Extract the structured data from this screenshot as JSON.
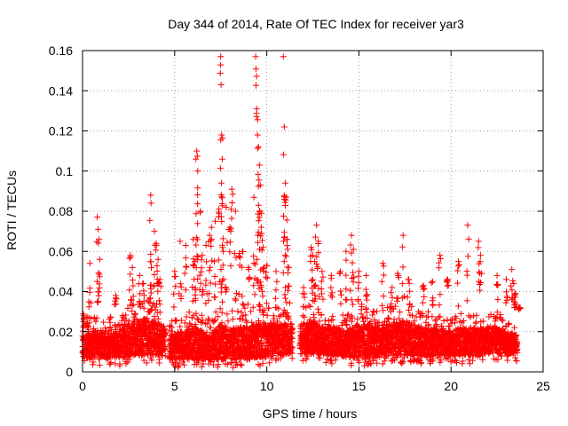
{
  "chart_data": {
    "type": "scatter",
    "title": "Day 344 of 2014, Rate Of TEC Index for receiver yar3",
    "xlabel": "GPS time / hours",
    "ylabel": "ROTI / TECUs",
    "xlim": [
      0,
      25
    ],
    "ylim": [
      0,
      0.16
    ],
    "xticks": [
      0,
      5,
      10,
      15,
      20,
      25
    ],
    "xtick_labels": [
      "0",
      "5",
      "10",
      "15",
      "20",
      "25"
    ],
    "yticks": [
      0,
      0.02,
      0.04,
      0.06,
      0.08,
      0.1,
      0.12,
      0.14,
      0.16
    ],
    "ytick_labels": [
      "0",
      "0.02",
      "0.04",
      "0.06",
      "0.08",
      "0.1",
      "0.12",
      "0.14",
      "0.16"
    ],
    "grid": true,
    "marker": "+",
    "series": [
      {
        "name": "yar3",
        "color": "#ff0000",
        "data_gaps_hours": [
          [
            4.5,
            4.7
          ],
          [
            11.4,
            11.8
          ]
        ],
        "points": [
          [
            0.05,
            0.025
          ],
          [
            0.3,
            0.018
          ],
          [
            0.4,
            0.054
          ],
          [
            0.8,
            0.077
          ],
          [
            0.85,
            0.071
          ],
          [
            0.9,
            0.066
          ],
          [
            1.5,
            0.022
          ],
          [
            1.8,
            0.038
          ],
          [
            2.3,
            0.02
          ],
          [
            2.6,
            0.058
          ],
          [
            2.7,
            0.052
          ],
          [
            3.1,
            0.048
          ],
          [
            3.3,
            0.044
          ],
          [
            3.6,
            0.03
          ],
          [
            3.7,
            0.088
          ],
          [
            3.72,
            0.084
          ],
          [
            3.9,
            0.07
          ],
          [
            4.0,
            0.064
          ],
          [
            4.1,
            0.056
          ],
          [
            4.2,
            0.046
          ],
          [
            5.0,
            0.05
          ],
          [
            5.3,
            0.065
          ],
          [
            5.6,
            0.063
          ],
          [
            6.0,
            0.066
          ],
          [
            6.1,
            0.055
          ],
          [
            6.15,
            0.106
          ],
          [
            6.2,
            0.11
          ],
          [
            6.25,
            0.1
          ],
          [
            6.4,
            0.08
          ],
          [
            6.5,
            0.058
          ],
          [
            6.7,
            0.063
          ],
          [
            6.9,
            0.068
          ],
          [
            7.0,
            0.072
          ],
          [
            7.2,
            0.075
          ],
          [
            7.4,
            0.081
          ],
          [
            7.5,
            0.157
          ],
          [
            7.52,
            0.143
          ],
          [
            7.55,
            0.118
          ],
          [
            7.58,
            0.106
          ],
          [
            7.6,
            0.062
          ],
          [
            7.8,
            0.082
          ],
          [
            8.0,
            0.072
          ],
          [
            8.1,
            0.091
          ],
          [
            8.3,
            0.08
          ],
          [
            8.5,
            0.059
          ],
          [
            8.7,
            0.06
          ],
          [
            9.0,
            0.052
          ],
          [
            9.3,
            0.087
          ],
          [
            9.4,
            0.157
          ],
          [
            9.45,
            0.131
          ],
          [
            9.5,
            0.118
          ],
          [
            9.55,
            0.112
          ],
          [
            9.6,
            0.103
          ],
          [
            9.65,
            0.093
          ],
          [
            9.7,
            0.079
          ],
          [
            9.8,
            0.062
          ],
          [
            10.0,
            0.053
          ],
          [
            10.5,
            0.05
          ],
          [
            10.9,
            0.157
          ],
          [
            10.95,
            0.122
          ],
          [
            11.0,
            0.094
          ],
          [
            11.05,
            0.087
          ],
          [
            11.1,
            0.066
          ],
          [
            11.2,
            0.052
          ],
          [
            12.0,
            0.042
          ],
          [
            12.4,
            0.062
          ],
          [
            12.5,
            0.058
          ],
          [
            12.6,
            0.055
          ],
          [
            12.7,
            0.073
          ],
          [
            12.8,
            0.065
          ],
          [
            13.0,
            0.05
          ],
          [
            13.5,
            0.048
          ],
          [
            14.0,
            0.05
          ],
          [
            14.3,
            0.06
          ],
          [
            14.6,
            0.068
          ],
          [
            14.7,
            0.061
          ],
          [
            15.0,
            0.05
          ],
          [
            15.4,
            0.048
          ],
          [
            16.3,
            0.054
          ],
          [
            16.8,
            0.042
          ],
          [
            17.1,
            0.049
          ],
          [
            17.4,
            0.068
          ],
          [
            17.7,
            0.046
          ],
          [
            18.5,
            0.043
          ],
          [
            19.0,
            0.045
          ],
          [
            19.4,
            0.058
          ],
          [
            19.8,
            0.046
          ],
          [
            20.4,
            0.055
          ],
          [
            20.9,
            0.073
          ],
          [
            21.5,
            0.065
          ],
          [
            21.6,
            0.058
          ],
          [
            22.5,
            0.048
          ],
          [
            23.0,
            0.046
          ],
          [
            23.3,
            0.051
          ],
          [
            23.4,
            0.044
          ],
          [
            23.5,
            0.039
          ],
          [
            23.7,
            0.032
          ]
        ],
        "dense_band": [
          [
            0,
            0.003,
            0.022
          ],
          [
            0.5,
            0.003,
            0.028
          ],
          [
            1.0,
            0.003,
            0.026
          ],
          [
            1.5,
            0.003,
            0.025
          ],
          [
            2.0,
            0.003,
            0.026
          ],
          [
            2.5,
            0.003,
            0.034
          ],
          [
            3.0,
            0.004,
            0.036
          ],
          [
            3.5,
            0.004,
            0.038
          ],
          [
            4.4,
            0.004,
            0.032
          ],
          [
            4.8,
            0.002,
            0.026
          ],
          [
            5.5,
            0.002,
            0.028
          ],
          [
            6.0,
            0.002,
            0.032
          ],
          [
            6.5,
            0.002,
            0.028
          ],
          [
            7.0,
            0.002,
            0.026
          ],
          [
            7.5,
            0.002,
            0.034
          ],
          [
            8.0,
            0.002,
            0.03
          ],
          [
            8.5,
            0.002,
            0.032
          ],
          [
            9.0,
            0.002,
            0.032
          ],
          [
            9.5,
            0.003,
            0.034
          ],
          [
            10.0,
            0.003,
            0.032
          ],
          [
            10.5,
            0.004,
            0.032
          ],
          [
            11.3,
            0.005,
            0.03
          ],
          [
            11.9,
            0.005,
            0.032
          ],
          [
            12.5,
            0.005,
            0.034
          ],
          [
            13.0,
            0.005,
            0.03
          ],
          [
            13.5,
            0.004,
            0.03
          ],
          [
            14.0,
            0.004,
            0.028
          ],
          [
            14.5,
            0.003,
            0.03
          ],
          [
            15.0,
            0.003,
            0.034
          ],
          [
            15.5,
            0.003,
            0.033
          ],
          [
            16.0,
            0.003,
            0.03
          ],
          [
            16.5,
            0.004,
            0.032
          ],
          [
            17.0,
            0.004,
            0.034
          ],
          [
            17.5,
            0.004,
            0.036
          ],
          [
            18.0,
            0.004,
            0.032
          ],
          [
            18.5,
            0.004,
            0.03
          ],
          [
            19.0,
            0.004,
            0.03
          ],
          [
            19.5,
            0.004,
            0.028
          ],
          [
            20.0,
            0.004,
            0.026
          ],
          [
            20.5,
            0.004,
            0.03
          ],
          [
            21.0,
            0.004,
            0.028
          ],
          [
            21.5,
            0.004,
            0.03
          ],
          [
            22.0,
            0.005,
            0.028
          ],
          [
            22.5,
            0.005,
            0.03
          ],
          [
            23.0,
            0.005,
            0.026
          ],
          [
            23.6,
            0.005,
            0.022
          ]
        ]
      }
    ]
  }
}
